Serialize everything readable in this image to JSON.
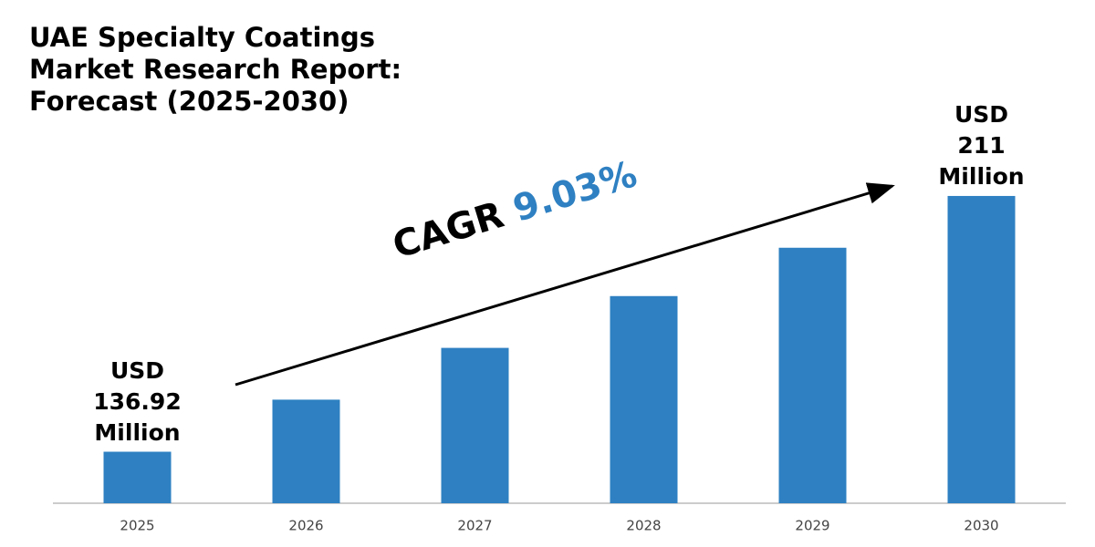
{
  "chart_data": {
    "type": "bar",
    "title": "UAE Specialty Coatings Market Research Report: Forecast (2025-2030)",
    "categories": [
      "2025",
      "2026",
      "2027",
      "2028",
      "2029",
      "2030"
    ],
    "values": [
      136.92,
      152,
      167,
      182,
      196,
      211
    ],
    "value_labels": [
      "USD 136.92 Million",
      null,
      null,
      null,
      null,
      "USD 211 Million"
    ],
    "color": "#2e80c2",
    "ylim": [
      122,
      230
    ],
    "cagr_label": "CAGR",
    "cagr_value": "9.03%"
  }
}
